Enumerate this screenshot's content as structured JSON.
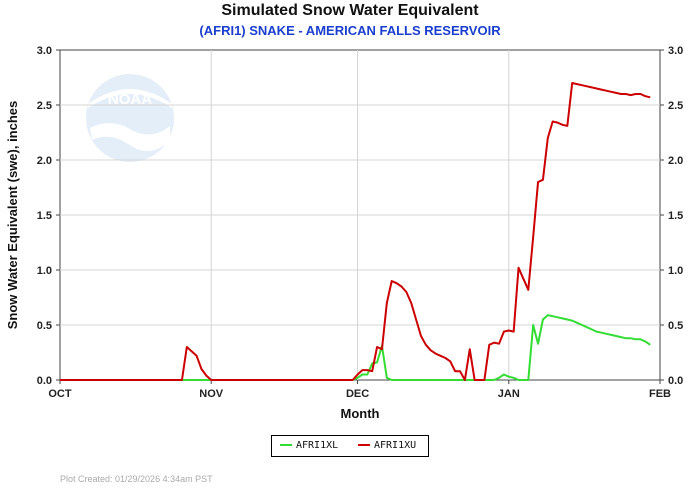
{
  "chart_data": {
    "type": "line",
    "title": "Simulated Snow Water Equivalent",
    "subtitle": "(AFRI1) SNAKE - AMERICAN FALLS RESERVOIR",
    "xlabel": "Month",
    "ylabel": "Snow Water Equivalent (swe),  inches",
    "xlim": [
      "2025-10-01",
      "2026-02-01"
    ],
    "ylim": [
      0,
      3.0
    ],
    "y_ticks": [
      "0.0",
      "0.5",
      "1.0",
      "1.5",
      "2.0",
      "2.5",
      "3.0"
    ],
    "x_ticks": [
      {
        "date": "2025-10-01",
        "label": "OCT"
      },
      {
        "date": "2025-11-01",
        "label": "NOV"
      },
      {
        "date": "2025-12-01",
        "label": "DEC"
      },
      {
        "date": "2026-01-01",
        "label": "JAN"
      },
      {
        "date": "2026-02-01",
        "label": "FEB"
      }
    ],
    "grid": true,
    "legend_position": "bottom",
    "series": [
      {
        "name": "AFRI1XL",
        "color": "#33dd33",
        "x": [
          "2025-10-01",
          "2025-11-30",
          "2025-12-01",
          "2025-12-02",
          "2025-12-03",
          "2025-12-04",
          "2025-12-05",
          "2025-12-06",
          "2025-12-07",
          "2025-12-08",
          "2025-12-09",
          "2025-12-10",
          "2025-12-11",
          "2025-12-12",
          "2025-12-13",
          "2025-12-14",
          "2025-12-15",
          "2025-12-16",
          "2025-12-17",
          "2025-12-18",
          "2025-12-19",
          "2025-12-20",
          "2025-12-21",
          "2025-12-22",
          "2025-12-23",
          "2025-12-24",
          "2025-12-25",
          "2025-12-26",
          "2025-12-27",
          "2025-12-28",
          "2025-12-29",
          "2025-12-30",
          "2025-12-31",
          "2026-01-01",
          "2026-01-02",
          "2026-01-03",
          "2026-01-04",
          "2026-01-05",
          "2026-01-06",
          "2026-01-07",
          "2026-01-08",
          "2026-01-09",
          "2026-01-10",
          "2026-01-11",
          "2026-01-12",
          "2026-01-13",
          "2026-01-14",
          "2026-01-15",
          "2026-01-16",
          "2026-01-17",
          "2026-01-18",
          "2026-01-19",
          "2026-01-20",
          "2026-01-21",
          "2026-01-22",
          "2026-01-23",
          "2026-01-24",
          "2026-01-25",
          "2026-01-26",
          "2026-01-27",
          "2026-01-28",
          "2026-01-29",
          "2026-01-30"
        ],
        "y": [
          0,
          0,
          0.02,
          0.05,
          0.05,
          0.15,
          0.16,
          0.31,
          0.02,
          0,
          0,
          0,
          0,
          0,
          0,
          0,
          0,
          0,
          0,
          0,
          0,
          0,
          0,
          0,
          0,
          0,
          0,
          0,
          0,
          0,
          0,
          0.02,
          0.05,
          0.03,
          0.02,
          0,
          0,
          0,
          0.5,
          0.33,
          0.55,
          0.59,
          0.58,
          0.57,
          0.56,
          0.55,
          0.54,
          0.52,
          0.5,
          0.48,
          0.46,
          0.44,
          0.43,
          0.42,
          0.41,
          0.4,
          0.39,
          0.38,
          0.38,
          0.37,
          0.37,
          0.35,
          0.32
        ]
      },
      {
        "name": "AFRI1XU",
        "color": "#cc0000",
        "x": [
          "2025-10-01",
          "2025-10-26",
          "2025-10-27",
          "2025-10-28",
          "2025-10-29",
          "2025-10-30",
          "2025-10-31",
          "2025-11-01",
          "2025-11-30",
          "2025-12-01",
          "2025-12-02",
          "2025-12-03",
          "2025-12-04",
          "2025-12-05",
          "2025-12-06",
          "2025-12-07",
          "2025-12-08",
          "2025-12-09",
          "2025-12-10",
          "2025-12-11",
          "2025-12-12",
          "2025-12-13",
          "2025-12-14",
          "2025-12-15",
          "2025-12-16",
          "2025-12-17",
          "2025-12-18",
          "2025-12-19",
          "2025-12-20",
          "2025-12-21",
          "2025-12-22",
          "2025-12-23",
          "2025-12-24",
          "2025-12-25",
          "2025-12-26",
          "2025-12-27",
          "2025-12-28",
          "2025-12-29",
          "2025-12-30",
          "2025-12-31",
          "2026-01-01",
          "2026-01-02",
          "2026-01-03",
          "2026-01-04",
          "2026-01-05",
          "2026-01-06",
          "2026-01-07",
          "2026-01-08",
          "2026-01-09",
          "2026-01-10",
          "2026-01-11",
          "2026-01-12",
          "2026-01-13",
          "2026-01-14",
          "2026-01-15",
          "2026-01-16",
          "2026-01-17",
          "2026-01-18",
          "2026-01-19",
          "2026-01-20",
          "2026-01-21",
          "2026-01-22",
          "2026-01-23",
          "2026-01-24",
          "2026-01-25",
          "2026-01-26",
          "2026-01-27",
          "2026-01-28",
          "2026-01-29",
          "2026-01-30"
        ],
        "y": [
          0,
          0,
          0.3,
          0.26,
          0.22,
          0.1,
          0.04,
          0,
          0,
          0.05,
          0.09,
          0.09,
          0.08,
          0.3,
          0.28,
          0.7,
          0.9,
          0.88,
          0.85,
          0.8,
          0.7,
          0.55,
          0.4,
          0.32,
          0.27,
          0.24,
          0.22,
          0.2,
          0.17,
          0.08,
          0.08,
          0,
          0.28,
          0,
          0,
          0,
          0.32,
          0.34,
          0.33,
          0.44,
          0.45,
          0.44,
          1.02,
          0.92,
          0.82,
          1.3,
          1.8,
          1.82,
          2.2,
          2.35,
          2.34,
          2.32,
          2.31,
          2.7,
          2.69,
          2.68,
          2.67,
          2.66,
          2.65,
          2.64,
          2.63,
          2.62,
          2.61,
          2.6,
          2.6,
          2.59,
          2.6,
          2.6,
          2.58,
          2.57
        ]
      }
    ]
  },
  "credit": "Plot Created: 01/29/2026 4:34am PST",
  "watermark": "NOAA"
}
